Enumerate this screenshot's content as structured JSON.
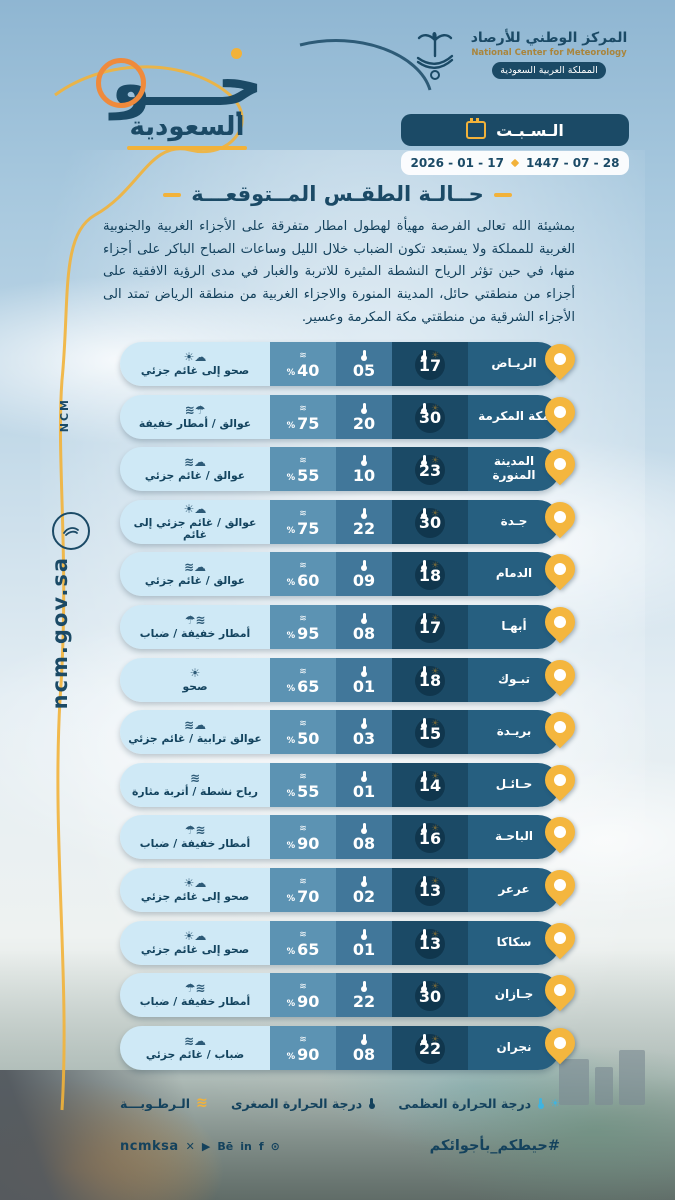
{
  "org": {
    "name_ar": "المركز الوطني للأرصاد",
    "name_en": "National Center for Meteorology",
    "country": "المملكة العربية السعودية"
  },
  "brand": {
    "main": "جـــو",
    "sub": "السعودية"
  },
  "date": {
    "day": "الـسـبـت",
    "hijri": "1447 - 07 - 28",
    "gregorian": "2026 - 01 - 17"
  },
  "page": {
    "title": "حــالـة الطقـس المــتوقعـــة",
    "summary": "بمشيئة الله تعالى الفرصة مهيأة لهطول امطار متفرقة على الأجزاء الغربية والجنوبية الغربية للمملكة ولا يستبعد تكون الضباب خلال الليل وساعات الصباح الباكر على أجزاء منها، في حين تؤثر الرياح النشطة المثيرة للاتربة والغبار في مدى الرؤية الافقية على أجزاء من منطقتي حائل، المدينة المنورة والاجزاء الغربية من منطقة الرياض تمتد الى الأجزاء الشرقية من منطقتي مكة المكرمة وعسير."
  },
  "side": {
    "url": "ncm.gov.sa",
    "abbr": "NCM"
  },
  "icons": {
    "sun": "☀",
    "wave": "≋"
  },
  "condition_glyphs": {
    "clear": "☀",
    "partly-cloudy": "☀☁",
    "dust-cloud": "≋☁",
    "dust-rain": "≋☂",
    "rain-fog": "☂≋",
    "wind": "≋",
    "fog-cloud": "≋☁"
  },
  "forecast": {
    "unit_percent": "%",
    "rows": [
      {
        "city": "الريـاض",
        "max": "17",
        "min": "05",
        "humidity": "40",
        "condition": "صحو إلى غائم جزئي",
        "icon": "partly-cloudy"
      },
      {
        "city": "مكة المكرمة",
        "max": "30",
        "min": "20",
        "humidity": "75",
        "condition": "عوالق / أمطار خفيفة",
        "icon": "dust-rain"
      },
      {
        "city": "المدينة المنورة",
        "max": "23",
        "min": "10",
        "humidity": "55",
        "condition": "عوالق / غائم جزئي",
        "icon": "dust-cloud"
      },
      {
        "city": "جـدة",
        "max": "30",
        "min": "22",
        "humidity": "75",
        "condition": "عوالق / غائم جزئي إلى غائم",
        "icon": "partly-cloudy"
      },
      {
        "city": "الدمام",
        "max": "18",
        "min": "09",
        "humidity": "60",
        "condition": "عوالق / غائم جزئي",
        "icon": "dust-cloud"
      },
      {
        "city": "أبهـا",
        "max": "17",
        "min": "08",
        "humidity": "95",
        "condition": "أمطار خفيفة / ضباب",
        "icon": "rain-fog"
      },
      {
        "city": "تبـوك",
        "max": "18",
        "min": "01",
        "humidity": "65",
        "condition": "صحو",
        "icon": "clear"
      },
      {
        "city": "بريـدة",
        "max": "15",
        "min": "03",
        "humidity": "50",
        "condition": "عوالق ترابية / غائم جزئي",
        "icon": "dust-cloud"
      },
      {
        "city": "حـائـل",
        "max": "14",
        "min": "01",
        "humidity": "55",
        "condition": "رياح نشطة / أتربة مثارة",
        "icon": "wind"
      },
      {
        "city": "الباحـة",
        "max": "16",
        "min": "08",
        "humidity": "90",
        "condition": "أمطار خفيفة / ضباب",
        "icon": "rain-fog"
      },
      {
        "city": "عرعر",
        "max": "13",
        "min": "02",
        "humidity": "70",
        "condition": "صحو إلى غائم جزئي",
        "icon": "partly-cloudy"
      },
      {
        "city": "سكاكا",
        "max": "13",
        "min": "01",
        "humidity": "65",
        "condition": "صحو إلى غائم جزئي",
        "icon": "partly-cloudy"
      },
      {
        "city": "جـازان",
        "max": "30",
        "min": "22",
        "humidity": "90",
        "condition": "أمطار خفيفة / ضباب",
        "icon": "rain-fog"
      },
      {
        "city": "نجران",
        "max": "22",
        "min": "08",
        "humidity": "90",
        "condition": "ضباب / غائم جزئي",
        "icon": "fog-cloud"
      }
    ]
  },
  "legend": {
    "max": "درجة الحرارة العظمى",
    "min": "درجة الحرارة الصغرى",
    "humidity": "الـرطـوبـــة"
  },
  "footer": {
    "hashtag": "#حيطكم_بأجوائكم",
    "handle": "ncmksa",
    "social_icons": [
      {
        "name": "x",
        "glyph": "✕"
      },
      {
        "name": "youtube",
        "glyph": "▶"
      },
      {
        "name": "behance",
        "glyph": "Bē"
      },
      {
        "name": "linkedin",
        "glyph": "in"
      },
      {
        "name": "facebook",
        "glyph": "f"
      },
      {
        "name": "snapchat",
        "glyph": "⊙"
      }
    ]
  },
  "colors": {
    "navy": "#1b4a66",
    "yellow": "#f2b23a",
    "cyan": "#3fb4e0"
  }
}
